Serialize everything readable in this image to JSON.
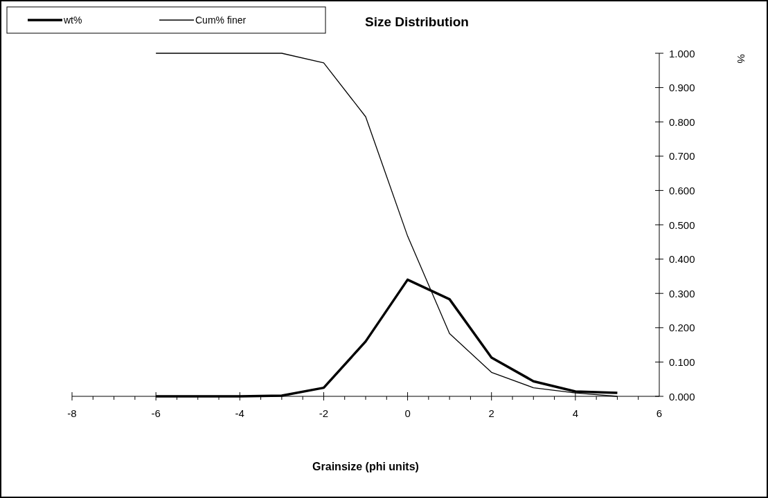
{
  "chart_data": {
    "type": "line",
    "title": "Size Distribution",
    "xlabel": "Grainsize (phi units)",
    "y2label": "%",
    "x": [
      -6,
      -5,
      -4,
      -3,
      -2,
      -1,
      0,
      1,
      2,
      3,
      4,
      5
    ],
    "series": [
      {
        "name": "wt%",
        "color": "#000000",
        "axis": "y2",
        "values": [
          0,
          0,
          0,
          0.002,
          0.025,
          0.16,
          0.34,
          0.283,
          0.113,
          0.044,
          0.014,
          0.01
        ]
      },
      {
        "name": "Cum% finer",
        "color": "#000000",
        "axis": "y2",
        "values": [
          1.0,
          1.0,
          1.0,
          1.0,
          0.972,
          0.815,
          0.467,
          0.183,
          0.07,
          0.025,
          0.01,
          0
        ]
      }
    ],
    "xlim": [
      -8,
      6
    ],
    "xticks": [
      -8,
      -6,
      -4,
      -2,
      0,
      2,
      4,
      6
    ],
    "y2lim": [
      0,
      1
    ],
    "y2ticks": [
      {
        "value": 0,
        "label": "0.000"
      },
      {
        "value": 0.1,
        "label": "0.100"
      },
      {
        "value": 0.2,
        "label": "0.200"
      },
      {
        "value": 0.3,
        "label": "0.300"
      },
      {
        "value": 0.4,
        "label": "0.400"
      },
      {
        "value": 0.5,
        "label": "0.500"
      },
      {
        "value": 0.6,
        "label": "0.600"
      },
      {
        "value": 0.7,
        "label": "0.700"
      },
      {
        "value": 0.8,
        "label": "0.800"
      },
      {
        "value": 0.9,
        "label": "0.900"
      },
      {
        "value": 1,
        "label": "1.000"
      }
    ],
    "grid": false,
    "legend": "top left",
    "marker": "none",
    "line_style": "solid"
  }
}
